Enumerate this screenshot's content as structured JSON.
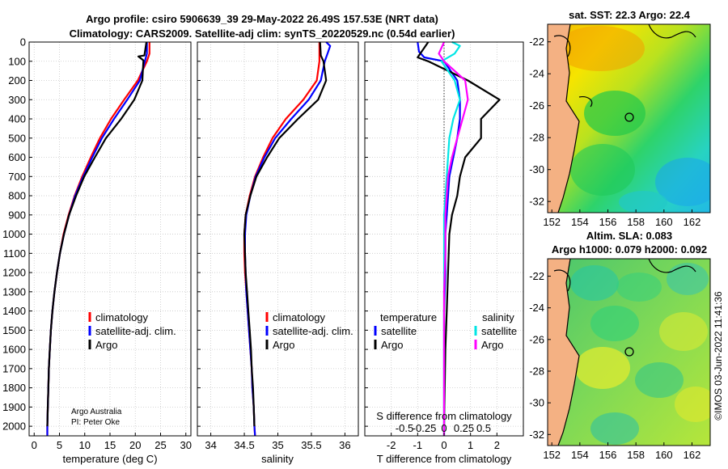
{
  "title": {
    "line1": "Argo profile: csiro 5906639_39 29-May-2022 26.49S 157.53E (NRT data)",
    "line2": "Climatology: CARS2009. Satellite-adj clim: synTS_20220529.nc (0.54d earlier)"
  },
  "credit": {
    "org": "Argo Australia",
    "pi": "PI: Peter Oke"
  },
  "timestamp": "©IMOS 03-Jun-2022 11:41:36",
  "colors": {
    "climatology": "#ff0000",
    "satellite_adj": "#0000ff",
    "argo": "#000000",
    "sat_t": "#00e5e5",
    "argo_s": "#ff00ff",
    "land": "#f4b183",
    "grid": "#c8c8c8"
  },
  "chart_data": [
    {
      "type": "line",
      "id": "temperature",
      "xlabel": "temperature (deg C)",
      "xlim": [
        -1,
        31
      ],
      "ylim": [
        0,
        2050
      ],
      "xticks": [
        "0",
        "5",
        "10",
        "15",
        "20",
        "25",
        "30"
      ],
      "xtick_values": [
        0,
        5,
        10,
        15,
        20,
        25,
        30
      ],
      "yticks": [
        "0",
        "100",
        "200",
        "300",
        "400",
        "500",
        "600",
        "700",
        "800",
        "900",
        "1000",
        "1100",
        "1200",
        "1300",
        "1400",
        "1500",
        "1600",
        "1700",
        "1800",
        "1900",
        "2000"
      ],
      "ytick_values": [
        0,
        100,
        200,
        300,
        400,
        500,
        600,
        700,
        800,
        900,
        1000,
        1100,
        1200,
        1300,
        1400,
        1500,
        1600,
        1700,
        1800,
        1900,
        2000
      ],
      "legend": [
        "climatology",
        "satellite-adj. clim.",
        "Argo"
      ],
      "series": [
        {
          "name": "climatology",
          "color": "red",
          "points": [
            [
              22.8,
              0
            ],
            [
              22.8,
              60
            ],
            [
              22.3,
              100
            ],
            [
              20.5,
              200
            ],
            [
              17.8,
              300
            ],
            [
              15.2,
              400
            ],
            [
              13,
              500
            ],
            [
              11.2,
              600
            ],
            [
              9.5,
              700
            ],
            [
              8,
              800
            ],
            [
              6.8,
              900
            ],
            [
              5.8,
              1000
            ],
            [
              5.1,
              1100
            ],
            [
              4.5,
              1200
            ],
            [
              4,
              1300
            ],
            [
              3.6,
              1400
            ],
            [
              3.3,
              1500
            ],
            [
              3.1,
              1600
            ],
            [
              2.9,
              1700
            ],
            [
              2.8,
              1800
            ],
            [
              2.7,
              1900
            ],
            [
              2.6,
              2000
            ],
            [
              2.6,
              2050
            ]
          ]
        },
        {
          "name": "satellite-adj. clim.",
          "color": "blue",
          "points": [
            [
              22.3,
              0
            ],
            [
              22.3,
              60
            ],
            [
              21.9,
              100
            ],
            [
              20.9,
              200
            ],
            [
              18.4,
              300
            ],
            [
              15.8,
              400
            ],
            [
              13.4,
              500
            ],
            [
              11.5,
              600
            ],
            [
              9.7,
              700
            ],
            [
              8.1,
              800
            ],
            [
              6.9,
              900
            ],
            [
              5.9,
              1000
            ],
            [
              5.1,
              1100
            ],
            [
              4.5,
              1200
            ],
            [
              4,
              1300
            ],
            [
              3.6,
              1400
            ],
            [
              3.3,
              1500
            ],
            [
              3.1,
              1600
            ],
            [
              2.9,
              1700
            ],
            [
              2.8,
              1800
            ],
            [
              2.7,
              1900
            ],
            [
              2.6,
              2000
            ],
            [
              2.6,
              2050
            ]
          ]
        },
        {
          "name": "Argo",
          "color": "black",
          "points": [
            [
              22.2,
              0
            ],
            [
              21.8,
              70
            ],
            [
              20.6,
              75
            ],
            [
              21.6,
              95
            ],
            [
              21.4,
              200
            ],
            [
              19.8,
              300
            ],
            [
              17.2,
              400
            ],
            [
              14.2,
              500
            ],
            [
              12,
              600
            ],
            [
              9.9,
              700
            ],
            [
              8.3,
              800
            ],
            [
              6.9,
              900
            ],
            [
              5.9,
              1000
            ],
            [
              5.1,
              1100
            ],
            [
              4.5,
              1200
            ],
            [
              4,
              1300
            ],
            [
              3.6,
              1400
            ],
            [
              3.3,
              1500
            ],
            [
              3.1,
              1600
            ],
            [
              2.9,
              1700
            ],
            [
              2.8,
              1800
            ],
            [
              2.7,
              1900
            ],
            [
              2.6,
              2000
            ]
          ]
        }
      ]
    },
    {
      "type": "line",
      "id": "salinity",
      "xlabel": "salinity",
      "xlim": [
        33.8,
        36.2
      ],
      "ylim": [
        0,
        2050
      ],
      "xticks": [
        "34",
        "34.5",
        "35",
        "35.5",
        "36"
      ],
      "xtick_values": [
        34,
        34.5,
        35,
        35.5,
        36
      ],
      "legend": [
        "climatology",
        "satellite-adj. clim.",
        "Argo"
      ],
      "series": [
        {
          "name": "climatology",
          "color": "red",
          "points": [
            [
              35.62,
              0
            ],
            [
              35.62,
              60
            ],
            [
              35.62,
              100
            ],
            [
              35.58,
              200
            ],
            [
              35.38,
              300
            ],
            [
              35.12,
              400
            ],
            [
              34.92,
              500
            ],
            [
              34.78,
              600
            ],
            [
              34.66,
              700
            ],
            [
              34.58,
              800
            ],
            [
              34.52,
              900
            ],
            [
              34.5,
              1000
            ],
            [
              34.5,
              1100
            ],
            [
              34.51,
              1200
            ],
            [
              34.53,
              1300
            ],
            [
              34.55,
              1400
            ],
            [
              34.57,
              1500
            ],
            [
              34.59,
              1600
            ],
            [
              34.61,
              1700
            ],
            [
              34.62,
              1800
            ],
            [
              34.64,
              1900
            ],
            [
              34.65,
              2000
            ],
            [
              34.66,
              2050
            ]
          ]
        },
        {
          "name": "satellite-adj. clim.",
          "color": "blue",
          "points": [
            [
              35.72,
              0
            ],
            [
              35.78,
              20
            ],
            [
              35.74,
              60
            ],
            [
              35.7,
              100
            ],
            [
              35.64,
              200
            ],
            [
              35.46,
              300
            ],
            [
              35.2,
              400
            ],
            [
              34.96,
              500
            ],
            [
              34.8,
              600
            ],
            [
              34.67,
              700
            ],
            [
              34.59,
              800
            ],
            [
              34.53,
              900
            ],
            [
              34.51,
              1000
            ],
            [
              34.51,
              1100
            ],
            [
              34.52,
              1200
            ],
            [
              34.53,
              1300
            ],
            [
              34.55,
              1400
            ],
            [
              34.57,
              1500
            ],
            [
              34.59,
              1600
            ],
            [
              34.61,
              1700
            ],
            [
              34.62,
              1800
            ],
            [
              34.64,
              1900
            ],
            [
              34.65,
              2000
            ],
            [
              34.66,
              2050
            ]
          ]
        },
        {
          "name": "Argo",
          "color": "black",
          "points": [
            [
              35.63,
              0
            ],
            [
              35.64,
              70
            ],
            [
              35.68,
              100
            ],
            [
              35.72,
              200
            ],
            [
              35.6,
              300
            ],
            [
              35.3,
              400
            ],
            [
              35.02,
              500
            ],
            [
              34.84,
              600
            ],
            [
              34.68,
              700
            ],
            [
              34.59,
              800
            ],
            [
              34.52,
              900
            ],
            [
              34.5,
              1000
            ],
            [
              34.51,
              1100
            ],
            [
              34.52,
              1200
            ],
            [
              34.54,
              1300
            ],
            [
              34.56,
              1400
            ],
            [
              34.58,
              1500
            ],
            [
              34.6,
              1600
            ],
            [
              34.61,
              1700
            ],
            [
              34.63,
              1800
            ],
            [
              34.64,
              1900
            ],
            [
              34.65,
              2000
            ]
          ]
        }
      ]
    },
    {
      "type": "line",
      "id": "difference",
      "xlabel": "T difference from climatology",
      "top_xlabel": "S difference from climatology",
      "xlim": [
        -3,
        3
      ],
      "ylim": [
        0,
        2050
      ],
      "xticks": [
        "-2",
        "-1",
        "0",
        "1",
        "2"
      ],
      "xtick_values": [
        -2,
        -1,
        0,
        1,
        2
      ],
      "s_ticks": [
        "-0.5",
        "-0.25",
        "0",
        "0.25",
        "0.5"
      ],
      "s_tick_values": [
        -1.5,
        -0.75,
        0,
        0.75,
        1.5
      ],
      "legend_left_title": "temperature",
      "legend_left": [
        "satellite",
        "Argo"
      ],
      "legend_right_title": "salinity",
      "legend_right": [
        "satellite",
        "Argo"
      ],
      "series": [
        {
          "name": "temperature satellite",
          "color": "blue",
          "points": [
            [
              -1,
              0
            ],
            [
              -0.95,
              50
            ],
            [
              -0.75,
              80
            ],
            [
              0,
              100
            ],
            [
              0.5,
              200
            ],
            [
              0.6,
              300
            ],
            [
              0.6,
              400
            ],
            [
              0.5,
              500
            ],
            [
              0.35,
              600
            ],
            [
              0.2,
              700
            ],
            [
              0.15,
              800
            ],
            [
              0.1,
              900
            ],
            [
              0.05,
              1000
            ],
            [
              0.05,
              1200
            ],
            [
              0,
              1400
            ],
            [
              0,
              2050
            ]
          ]
        },
        {
          "name": "temperature Argo",
          "color": "black",
          "points": [
            [
              -0.6,
              0
            ],
            [
              -1,
              80
            ],
            [
              -0.6,
              100
            ],
            [
              0.9,
              200
            ],
            [
              2.1,
              300
            ],
            [
              1.4,
              400
            ],
            [
              1.4,
              500
            ],
            [
              0.8,
              600
            ],
            [
              0.6,
              700
            ],
            [
              0.5,
              800
            ],
            [
              0.3,
              900
            ],
            [
              0.2,
              1000
            ],
            [
              0.15,
              1200
            ],
            [
              0.1,
              1400
            ],
            [
              0.05,
              1600
            ],
            [
              0,
              2000
            ]
          ]
        },
        {
          "name": "salinity satellite",
          "color": "cyan",
          "points": [
            [
              0.3,
              0
            ],
            [
              0.6,
              20
            ],
            [
              0.4,
              60
            ],
            [
              -0.1,
              100
            ],
            [
              0.4,
              200
            ],
            [
              0.6,
              300
            ],
            [
              0.35,
              400
            ],
            [
              0.2,
              500
            ],
            [
              0.1,
              700
            ],
            [
              0,
              900
            ],
            [
              0,
              2050
            ]
          ]
        },
        {
          "name": "salinity Argo",
          "color": "magenta",
          "points": [
            [
              0,
              0
            ],
            [
              -0.2,
              60
            ],
            [
              0,
              100
            ],
            [
              0.8,
              200
            ],
            [
              0.9,
              300
            ],
            [
              0.7,
              400
            ],
            [
              0.5,
              500
            ],
            [
              0.3,
              600
            ],
            [
              0.15,
              700
            ],
            [
              0.05,
              900
            ],
            [
              0.05,
              1100
            ],
            [
              0,
              1300
            ],
            [
              0,
              2050
            ]
          ]
        }
      ]
    },
    {
      "type": "heatmap",
      "id": "sst_map",
      "title": "sat. SST: 22.3 Argo: 22.4",
      "xticks": [
        "152",
        "154",
        "156",
        "158",
        "160",
        "162"
      ],
      "xtick_values": [
        152,
        154,
        156,
        158,
        160,
        162
      ],
      "yticks": [
        "-22",
        "-24",
        "-26",
        "-28",
        "-30",
        "-32"
      ],
      "ytick_values": [
        -22,
        -24,
        -26,
        -28,
        -30,
        -32
      ],
      "xlim": [
        151.7,
        163.3
      ],
      "ylim": [
        -32.7,
        -20.9
      ],
      "profile_location": [
        157.53,
        -26.49
      ]
    },
    {
      "type": "heatmap",
      "id": "sla_map",
      "title_line1": "Altim. SLA: 0.083",
      "title_line2": "Argo h1000: 0.079 h2000: 0.092",
      "xticks": [
        "152",
        "154",
        "156",
        "158",
        "160",
        "162"
      ],
      "xtick_values": [
        152,
        154,
        156,
        158,
        160,
        162
      ],
      "yticks": [
        "-22",
        "-24",
        "-26",
        "-28",
        "-30",
        "-32"
      ],
      "ytick_values": [
        -22,
        -24,
        -26,
        -28,
        -30,
        -32
      ],
      "xlim": [
        151.7,
        163.3
      ],
      "ylim": [
        -32.7,
        -20.9
      ],
      "profile_location": [
        157.53,
        -26.49
      ]
    }
  ]
}
